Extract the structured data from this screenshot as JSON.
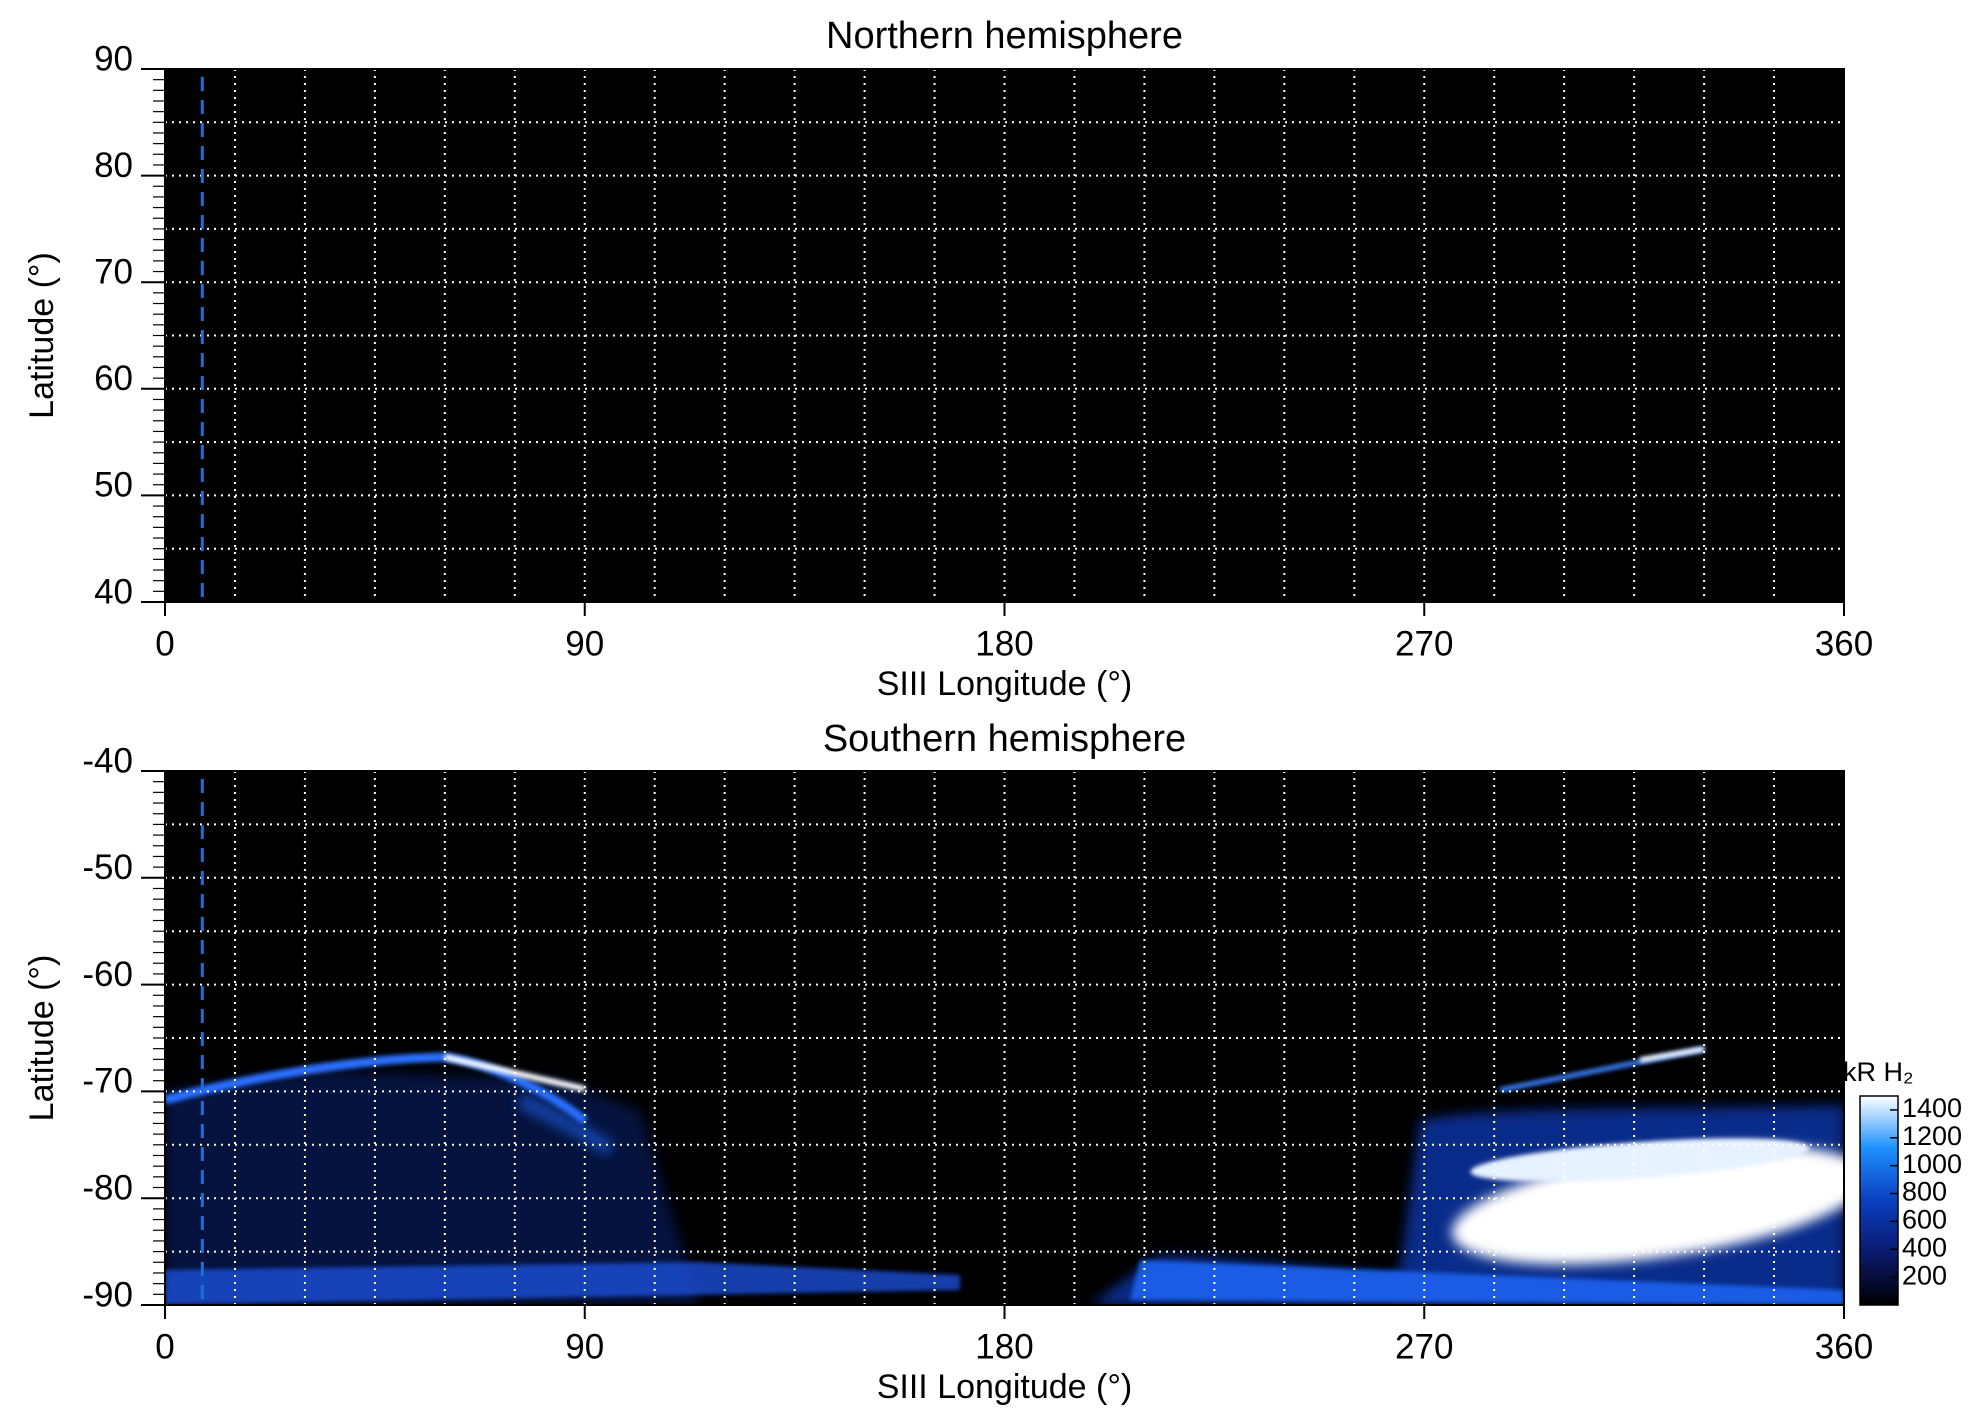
{
  "chart_data": [
    {
      "type": "heatmap",
      "title": "Northern hemisphere",
      "x_label": "SIII Longitude (°)",
      "y_label": "Latitude (°)",
      "xlim": [
        0,
        360
      ],
      "xticks": [
        0,
        90,
        180,
        270,
        360
      ],
      "ylim": [
        40,
        90
      ],
      "yticks": [
        40,
        50,
        60,
        70,
        80,
        90
      ],
      "xgrid_step": 15,
      "ygrid_step": 5,
      "yminor_step": 1,
      "marker_longitude": 8,
      "marker_color": "#1f6fd6"
    },
    {
      "type": "heatmap",
      "title": "Southern hemisphere",
      "x_label": "SIII Longitude (°)",
      "y_label": "Latitude (°)",
      "xlim": [
        0,
        360
      ],
      "xticks": [
        0,
        90,
        180,
        270,
        360
      ],
      "ylim": [
        -90,
        -40
      ],
      "yticks": [
        -90,
        -80,
        -70,
        -60,
        -50,
        -40
      ],
      "xgrid_step": 15,
      "ygrid_step": 5,
      "yminor_step": 1,
      "marker_longitude": 8,
      "marker_color": "#1f6fd6",
      "colorbar": {
        "label": "kR H₂",
        "lim": [
          0,
          1500
        ],
        "ticks": [
          200,
          400,
          600,
          800,
          1000,
          1200,
          1400
        ]
      }
    }
  ]
}
